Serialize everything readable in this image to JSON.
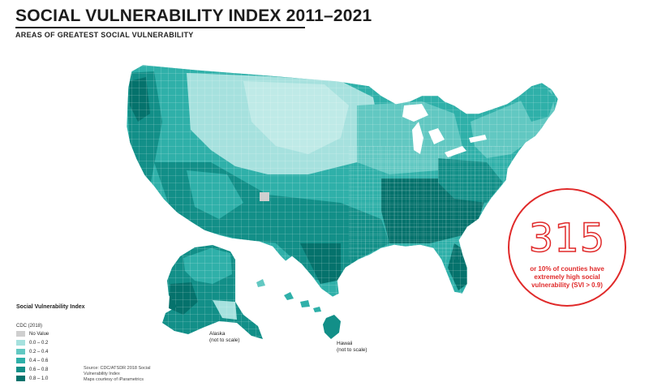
{
  "header": {
    "title": "SOCIAL VULNERABILITY INDEX 2011–2021",
    "subtitle": "AREAS OF GREATEST SOCIAL VULNERABILITY"
  },
  "legend": {
    "title": "Social Vulnerability Index",
    "subtitle": "CDC (2018)",
    "items": [
      {
        "label": "No Value",
        "color": "#cfcfcf"
      },
      {
        "label": "0.0 – 0.2",
        "color": "#a6e1de"
      },
      {
        "label": "0.2 – 0.4",
        "color": "#62c8c2"
      },
      {
        "label": "0.4 – 0.6",
        "color": "#2fb0a9"
      },
      {
        "label": "0.6 – 0.8",
        "color": "#128f88"
      },
      {
        "label": "0.8 – 1.0",
        "color": "#05726c"
      }
    ]
  },
  "source": {
    "line1": "Source: CDC/ATSDR 2018 Social",
    "line2": "Vulnerability Index",
    "line3": "Maps courtesy of iParametrics"
  },
  "insets": {
    "alaska": {
      "name": "Alaska",
      "note": "(not to scale)"
    },
    "hawaii": {
      "name": "Hawaii",
      "note": "(not to scale)"
    }
  },
  "callout": {
    "number": "315",
    "text": "or 10% of counties have extremely high social vulnerability (SVI > 0.9)",
    "color": "#e02a2a"
  }
}
